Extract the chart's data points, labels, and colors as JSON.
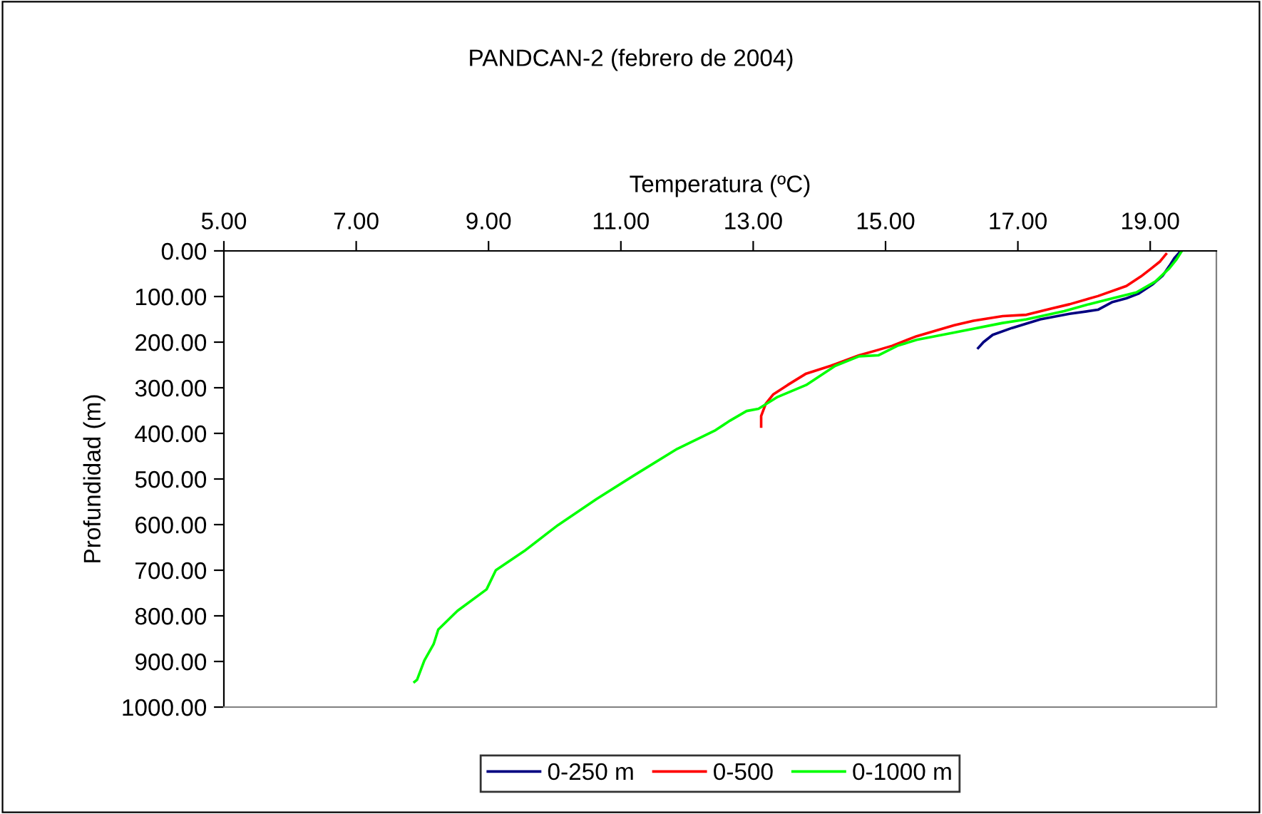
{
  "chart_data": {
    "type": "line",
    "title": "PANDCAN-2 (febrero de 2004)",
    "xlabel": "Temperatura (ºC)",
    "ylabel": "Profundidad (m)",
    "xlim": [
      5,
      20
    ],
    "xticks": [
      {
        "value": 5,
        "label": "5.00"
      },
      {
        "value": 7,
        "label": "7.00"
      },
      {
        "value": 9,
        "label": "9.00"
      },
      {
        "value": 11,
        "label": "11.00"
      },
      {
        "value": 13,
        "label": "13.00"
      },
      {
        "value": 15,
        "label": "15.00"
      },
      {
        "value": 17,
        "label": "17.00"
      },
      {
        "value": 19,
        "label": "19.00"
      }
    ],
    "ylim": [
      1000,
      0
    ],
    "yticks": [
      {
        "value": 0,
        "label": "0.00"
      },
      {
        "value": 100,
        "label": "100.00"
      },
      {
        "value": 200,
        "label": "200.00"
      },
      {
        "value": 300,
        "label": "300.00"
      },
      {
        "value": 400,
        "label": "400.00"
      },
      {
        "value": 500,
        "label": "500.00"
      },
      {
        "value": 600,
        "label": "600.00"
      },
      {
        "value": 700,
        "label": "700.00"
      },
      {
        "value": 800,
        "label": "800.00"
      },
      {
        "value": 900,
        "label": "900.00"
      },
      {
        "value": 1000,
        "label": "1000.00"
      }
    ],
    "legend": "bottom",
    "grid": false,
    "series": [
      {
        "name": "0-250 m",
        "color": "#000080",
        "x": [
          19.45,
          19.37,
          19.29,
          19.19,
          19.04,
          18.82,
          18.64,
          18.43,
          18.21,
          17.78,
          17.34,
          16.91,
          16.62,
          16.48,
          16.4
        ],
        "values": [
          2,
          15,
          33,
          54,
          73,
          94,
          104,
          112,
          129,
          138,
          150,
          169,
          184,
          200,
          213
        ]
      },
      {
        "name": "0-500",
        "color": "#ff0000",
        "x": [
          19.24,
          19.15,
          19.02,
          18.86,
          18.64,
          18.21,
          17.78,
          17.49,
          17.13,
          16.77,
          16.33,
          16.04,
          15.47,
          15.1,
          14.89,
          14.6,
          14.17,
          13.8,
          13.52,
          13.3,
          13.19,
          13.12,
          13.12
        ],
        "values": [
          7,
          23,
          38,
          56,
          77,
          99,
          117,
          127,
          140,
          143,
          153,
          163,
          187,
          208,
          217,
          229,
          252,
          269,
          294,
          315,
          335,
          362,
          385
        ]
      },
      {
        "name": "0-1000 m",
        "color": "#00ff00",
        "x": [
          19.47,
          19.4,
          19.29,
          19.08,
          18.79,
          18.43,
          18.07,
          17.7,
          17.13,
          16.77,
          16.04,
          15.47,
          15.18,
          14.89,
          14.6,
          14.24,
          13.8,
          13.37,
          13.08,
          12.9,
          12.65,
          12.43,
          11.85,
          11.2,
          10.63,
          10.05,
          9.54,
          9.11,
          8.97,
          8.53,
          8.24,
          8.17,
          8.03,
          7.92,
          7.88
        ],
        "values": [
          2,
          18,
          38,
          67,
          91,
          104,
          117,
          132,
          150,
          158,
          179,
          195,
          208,
          229,
          231,
          252,
          294,
          320,
          346,
          351,
          372,
          393,
          434,
          492,
          544,
          601,
          658,
          700,
          742,
          789,
          830,
          862,
          898,
          940,
          945
        ]
      }
    ]
  }
}
